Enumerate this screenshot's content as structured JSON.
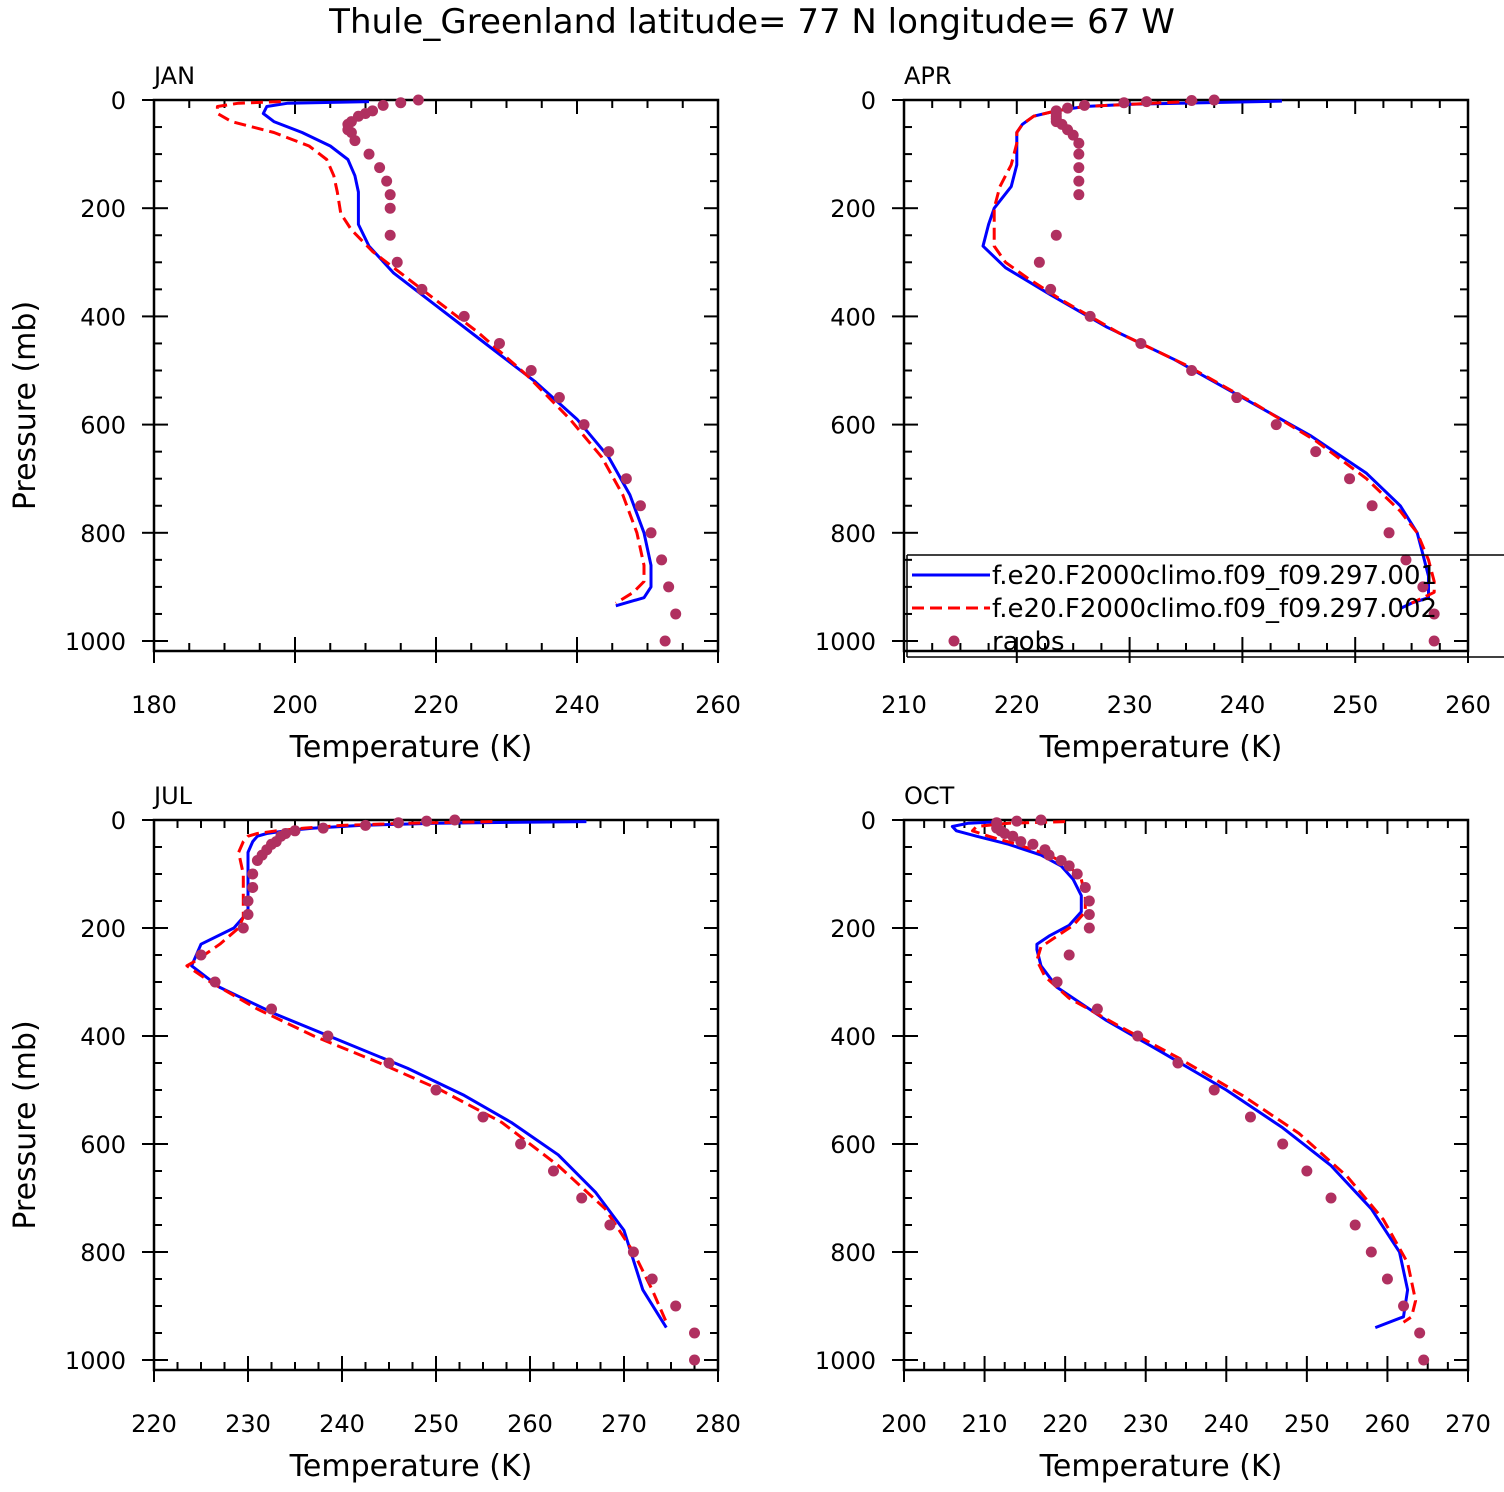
{
  "figure": {
    "title": "Thule_Greenland  latitude= 77 N longitude= 67 W"
  },
  "colors": {
    "model_a": "#0000ff",
    "model_b": "#ff0000",
    "raobs": "#b03060",
    "axes": "#000000"
  },
  "chart_data": [
    {
      "type": "line",
      "panel": "JAN",
      "title": "JAN",
      "xlabel": "Temperature (K)",
      "ylabel": "Pressure (mb)",
      "xlim": [
        180,
        260
      ],
      "ylim": [
        1020,
        0
      ],
      "xticks": [
        180,
        200,
        220,
        240,
        260
      ],
      "yticks": [
        0,
        200,
        400,
        600,
        800,
        1000
      ],
      "series": [
        {
          "name": "f.e20.F2000climo.f09_f09.297.001",
          "style": "solid",
          "color": "#0000ff",
          "x": [
            210.5,
            199,
            196,
            195.5,
            197,
            201,
            205,
            207.5,
            208.5,
            209,
            209,
            210.5,
            214,
            220,
            227,
            234,
            240,
            244.5,
            247.5,
            249.5,
            250.5,
            250.5,
            249.5,
            245.5
          ],
          "y": [
            3,
            6,
            12,
            25,
            40,
            60,
            85,
            110,
            140,
            170,
            230,
            270,
            320,
            380,
            450,
            520,
            590,
            660,
            730,
            800,
            860,
            900,
            920,
            935
          ]
        },
        {
          "name": "f.e20.F2000climo.f09_f09.297.002",
          "style": "dashed",
          "color": "#ff0000",
          "x": [
            198,
            192,
            189,
            189,
            191,
            197,
            202,
            204.5,
            205.5,
            206,
            206.5,
            208,
            211,
            218,
            226,
            233,
            239,
            243.5,
            246.5,
            248.5,
            249.5,
            249.5,
            248,
            245.5
          ],
          "y": [
            3,
            6,
            12,
            25,
            40,
            60,
            85,
            110,
            140,
            170,
            210,
            240,
            280,
            350,
            430,
            510,
            590,
            660,
            730,
            800,
            860,
            890,
            910,
            930
          ]
        },
        {
          "name": "raobs",
          "style": "markers",
          "color": "#b03060",
          "x": [
            217.5,
            215,
            212.5,
            211,
            210,
            209,
            208,
            207.5,
            207.5,
            208,
            208.5,
            210.5,
            212,
            213,
            213.5,
            213.5,
            213.5,
            214.5,
            218,
            224,
            229,
            233.5,
            237.5,
            241,
            244.5,
            247,
            249,
            250.5,
            252,
            253,
            254,
            252.5
          ],
          "y": [
            0,
            5,
            10,
            20,
            25,
            30,
            40,
            45,
            55,
            60,
            75,
            100,
            125,
            150,
            175,
            200,
            250,
            300,
            350,
            400,
            450,
            500,
            550,
            600,
            650,
            700,
            750,
            800,
            850,
            900,
            950,
            1000
          ]
        }
      ]
    },
    {
      "type": "line",
      "panel": "APR",
      "title": "APR",
      "xlabel": "Temperature (K)",
      "ylabel": "",
      "xlim": [
        210,
        260
      ],
      "ylim": [
        1020,
        0
      ],
      "xticks": [
        210,
        220,
        230,
        240,
        250,
        260
      ],
      "yticks": [
        0,
        200,
        400,
        600,
        800,
        1000
      ],
      "series": [
        {
          "name": "f.e20.F2000climo.f09_f09.297.001",
          "style": "solid",
          "color": "#0000ff",
          "x": [
            243.5,
            230,
            226,
            223.5,
            221.5,
            220.5,
            220,
            220,
            220,
            219.5,
            218,
            217.5,
            217,
            219,
            223,
            228,
            234,
            240,
            246,
            251,
            254,
            255.5,
            256,
            256.5,
            256.5,
            256.5,
            255,
            254
          ],
          "y": [
            2,
            8,
            12,
            20,
            30,
            45,
            60,
            80,
            120,
            160,
            200,
            230,
            270,
            310,
            360,
            420,
            480,
            550,
            620,
            690,
            750,
            800,
            840,
            880,
            910,
            920,
            930,
            940
          ]
        },
        {
          "name": "f.e20.F2000climo.f09_f09.297.002",
          "style": "dashed",
          "color": "#ff0000",
          "x": [
            236,
            230,
            226,
            223.5,
            221.5,
            220.5,
            220,
            220,
            219.5,
            218.5,
            218,
            218,
            218,
            219,
            221,
            224,
            229,
            235,
            241,
            246.5,
            251,
            254,
            255.5,
            256.5,
            257,
            257,
            256,
            255
          ],
          "y": [
            2,
            8,
            12,
            20,
            30,
            45,
            60,
            80,
            120,
            160,
            200,
            230,
            270,
            300,
            330,
            370,
            430,
            490,
            560,
            630,
            700,
            760,
            800,
            850,
            890,
            910,
            920,
            930
          ]
        },
        {
          "name": "raobs",
          "style": "markers",
          "color": "#b03060",
          "x": [
            237.5,
            235.5,
            231.5,
            229.5,
            226,
            224.5,
            223.5,
            223.5,
            223.5,
            223.5,
            223.5,
            224,
            224.5,
            225,
            225.5,
            225.5,
            225.5,
            225.5,
            225.5,
            223.5,
            222,
            223,
            226.5,
            231,
            235.5,
            239.5,
            243,
            246.5,
            249.5,
            251.5,
            253,
            254.5,
            256,
            257,
            257
          ],
          "y": [
            0,
            1,
            3,
            5,
            10,
            15,
            20,
            25,
            30,
            35,
            40,
            45,
            55,
            65,
            80,
            100,
            125,
            150,
            175,
            250,
            300,
            350,
            400,
            450,
            500,
            550,
            600,
            650,
            700,
            750,
            800,
            850,
            900,
            950,
            1000
          ]
        }
      ]
    },
    {
      "type": "line",
      "panel": "JUL",
      "title": "JUL",
      "xlabel": "Temperature (K)",
      "ylabel": "Pressure (mb)",
      "xlim": [
        220,
        280
      ],
      "ylim": [
        1020,
        0
      ],
      "xticks": [
        220,
        230,
        240,
        250,
        260,
        270,
        280
      ],
      "yticks": [
        0,
        200,
        400,
        600,
        800,
        1000
      ],
      "series": [
        {
          "name": "f.e20.F2000climo.f09_f09.297.001",
          "style": "solid",
          "color": "#0000ff",
          "x": [
            266,
            250,
            242,
            237,
            234,
            232,
            231,
            230.5,
            230,
            230,
            230,
            230,
            229.5,
            228.5,
            225,
            224,
            227,
            233,
            240,
            247,
            253,
            258,
            263,
            267,
            270,
            272,
            274.5
          ],
          "y": [
            3,
            6,
            10,
            15,
            20,
            25,
            30,
            40,
            60,
            100,
            130,
            165,
            180,
            200,
            230,
            270,
            310,
            360,
            410,
            460,
            510,
            560,
            620,
            690,
            760,
            870,
            940
          ]
        },
        {
          "name": "f.e20.F2000climo.f09_f09.297.002",
          "style": "dashed",
          "color": "#ff0000",
          "x": [
            256,
            247,
            240,
            236,
            233,
            231,
            230,
            229.5,
            229,
            229.5,
            229.5,
            229.5,
            229.5,
            229,
            227,
            224.5,
            223.5,
            226,
            231,
            237,
            244,
            250.5,
            257,
            263,
            268,
            271,
            273,
            274.5
          ],
          "y": [
            3,
            6,
            10,
            15,
            20,
            25,
            30,
            40,
            60,
            100,
            130,
            165,
            180,
            200,
            230,
            260,
            270,
            300,
            350,
            400,
            450,
            500,
            560,
            640,
            720,
            800,
            870,
            930
          ]
        },
        {
          "name": "raobs",
          "style": "markers",
          "color": "#b03060",
          "x": [
            252,
            249,
            246,
            242.5,
            238,
            235,
            234,
            233.5,
            233,
            232.5,
            232,
            231.5,
            231,
            230.5,
            230.5,
            230,
            230,
            229.5,
            225,
            226.5,
            232.5,
            238.5,
            245,
            250,
            255,
            259,
            262.5,
            265.5,
            268.5,
            271,
            273,
            275.5,
            277.5,
            277.5
          ],
          "y": [
            0,
            2,
            5,
            10,
            15,
            20,
            25,
            30,
            40,
            45,
            55,
            65,
            75,
            100,
            125,
            150,
            175,
            200,
            250,
            300,
            350,
            400,
            450,
            500,
            550,
            600,
            650,
            700,
            750,
            800,
            850,
            900,
            950,
            1000
          ]
        }
      ]
    },
    {
      "type": "line",
      "panel": "OCT",
      "title": "OCT",
      "xlabel": "Temperature (K)",
      "ylabel": "",
      "xlim": [
        200,
        270
      ],
      "ylim": [
        1020,
        0
      ],
      "xticks": [
        200,
        210,
        220,
        230,
        240,
        250,
        260,
        270
      ],
      "yticks": [
        0,
        200,
        400,
        600,
        800,
        1000
      ],
      "series": [
        {
          "name": "f.e20.F2000climo.f09_f09.297.001",
          "style": "solid",
          "color": "#0000ff",
          "x": [
            212,
            208,
            206,
            206.5,
            209,
            213,
            217,
            219.5,
            221,
            222,
            222,
            220.5,
            218,
            216.5,
            216.5,
            217,
            219,
            225,
            232,
            240,
            247,
            253,
            258,
            261.5,
            262.5,
            262,
            258.5
          ],
          "y": [
            3,
            6,
            12,
            20,
            30,
            45,
            65,
            85,
            110,
            140,
            170,
            195,
            215,
            230,
            240,
            270,
            310,
            370,
            430,
            500,
            570,
            640,
            720,
            800,
            870,
            920,
            940
          ]
        },
        {
          "name": "f.e20.F2000climo.f09_f09.297.002",
          "style": "dashed",
          "color": "#ff0000",
          "x": [
            220,
            213,
            209,
            208.5,
            210.5,
            214,
            218,
            220.5,
            222,
            222.5,
            222.5,
            221,
            219,
            217,
            216.5,
            217.5,
            220.5,
            226.5,
            234,
            242,
            249,
            255,
            259.5,
            262.5,
            263.5,
            263,
            262
          ],
          "y": [
            3,
            6,
            12,
            20,
            30,
            45,
            65,
            85,
            110,
            140,
            170,
            195,
            215,
            235,
            260,
            290,
            330,
            380,
            440,
            510,
            580,
            660,
            740,
            820,
            890,
            920,
            930
          ]
        },
        {
          "name": "raobs",
          "style": "markers",
          "color": "#b03060",
          "x": [
            217,
            214,
            211.5,
            211.5,
            212,
            212.5,
            213.5,
            214.5,
            216,
            217.5,
            218,
            219.5,
            220.5,
            221.5,
            222.5,
            223,
            223,
            223,
            220.5,
            219,
            224,
            229,
            234,
            238.5,
            243,
            247,
            250,
            253,
            256,
            258,
            260,
            262,
            264,
            264.5
          ],
          "y": [
            0,
            2,
            5,
            15,
            20,
            25,
            30,
            40,
            45,
            55,
            65,
            75,
            85,
            100,
            125,
            150,
            175,
            200,
            250,
            300,
            350,
            400,
            450,
            500,
            550,
            600,
            650,
            700,
            750,
            800,
            850,
            900,
            950,
            1000
          ]
        }
      ]
    }
  ],
  "legend": {
    "placement": "inside APR panel, lower, extending past right edge",
    "entries": [
      {
        "label": "f.e20.F2000climo.f09_f09.297.001",
        "style": "solid",
        "color": "#0000ff"
      },
      {
        "label": "f.e20.F2000climo.f09_f09.297.002",
        "style": "dashed",
        "color": "#ff0000"
      },
      {
        "label": "raobs",
        "style": "markers",
        "color": "#b03060"
      }
    ]
  }
}
